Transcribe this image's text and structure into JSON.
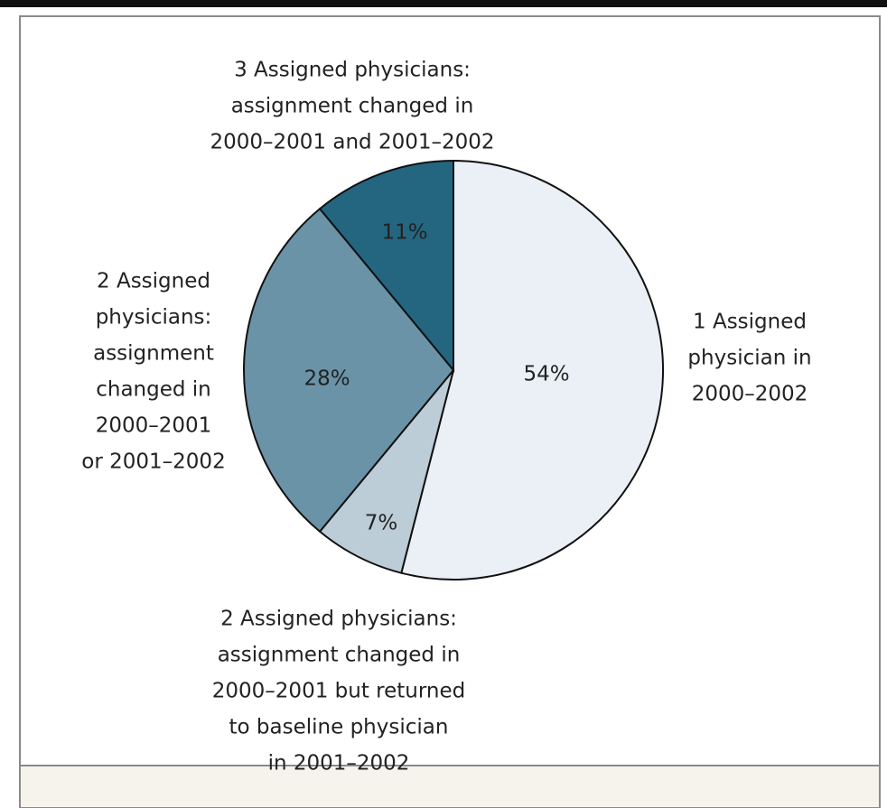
{
  "chart_data": {
    "type": "pie",
    "labels": [
      [
        "1 Assigned",
        "physician in",
        "2000–2002"
      ],
      [
        "2 Assigned physicians:",
        "assignment changed in",
        "2000–2001 but returned",
        "to baseline physician",
        "in 2001–2002"
      ],
      [
        "2 Assigned",
        "physicians:",
        "assignment",
        "changed in",
        "2000–2001",
        "or 2001–2002"
      ],
      [
        "3 Assigned physicians:",
        "assignment changed in",
        "2000–2001 and 2001–2002"
      ]
    ],
    "values": [
      54,
      7,
      28,
      11
    ],
    "value_labels": [
      "54%",
      "7%",
      "28%",
      "11%"
    ],
    "colors": [
      "#eaf0f5",
      "#bccdd8",
      "#6a93a8",
      "#246680"
    ],
    "value_label_colors": [
      "#222222",
      "#222222",
      "#222222",
      "#ffffff"
    ]
  }
}
